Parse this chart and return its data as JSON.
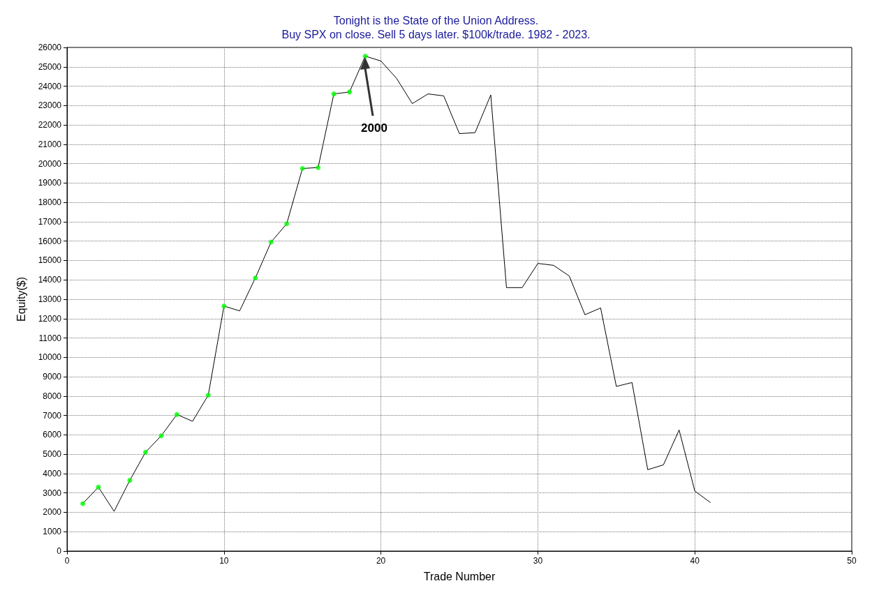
{
  "chart_data": {
    "type": "line",
    "title": "Tonight is the State of the Union Address.",
    "subtitle": "Buy SPX on close. Sell 5 days later. $100k/trade. 1982 - 2023.",
    "xlabel": "Trade Number",
    "ylabel": "Equity($)",
    "series": [
      {
        "color": "#000000",
        "marker": "none",
        "x": [
          1,
          2,
          3,
          4,
          5,
          6,
          7,
          8,
          9,
          10,
          11,
          12,
          13,
          14,
          15,
          16,
          17,
          18,
          19,
          20,
          21,
          22,
          23,
          24,
          25,
          26,
          27,
          28,
          29,
          30,
          31,
          32,
          33,
          34,
          35,
          36,
          37,
          38,
          39,
          40,
          41
        ],
        "values": [
          2450,
          3300,
          2050,
          3650,
          5100,
          5950,
          7050,
          6700,
          8050,
          12650,
          12400,
          14100,
          15950,
          16900,
          19750,
          19800,
          23600,
          23700,
          25550,
          25300,
          24400,
          23100,
          23600,
          23500,
          21550,
          21600,
          23550,
          13600,
          13600,
          14850,
          14750,
          14200,
          12200,
          12550,
          8500,
          8700,
          4200,
          4450,
          6250,
          3100,
          2500
        ]
      },
      {
        "type": "scatter",
        "color": "#00ff00",
        "marker": "circle",
        "x": [
          1,
          2,
          4,
          5,
          6,
          7,
          9,
          10,
          12,
          13,
          14,
          15,
          16,
          17,
          18,
          19
        ],
        "values": [
          2450,
          3300,
          3650,
          5100,
          5950,
          7050,
          8050,
          12650,
          14100,
          15950,
          16900,
          19750,
          19800,
          23600,
          23700,
          25550
        ]
      }
    ],
    "annotations": [
      "2000"
    ],
    "xlim": [
      0,
      50
    ],
    "xticks": [
      0,
      10,
      20,
      30,
      40,
      50
    ],
    "ylim": [
      0,
      26000
    ],
    "yticks": [
      0,
      1000,
      2000,
      3000,
      4000,
      5000,
      6000,
      7000,
      8000,
      9000,
      10000,
      11000,
      12000,
      13000,
      14000,
      15000,
      16000,
      17000,
      18000,
      19000,
      20000,
      21000,
      22000,
      23000,
      24000,
      25000,
      26000
    ],
    "grid": true
  }
}
